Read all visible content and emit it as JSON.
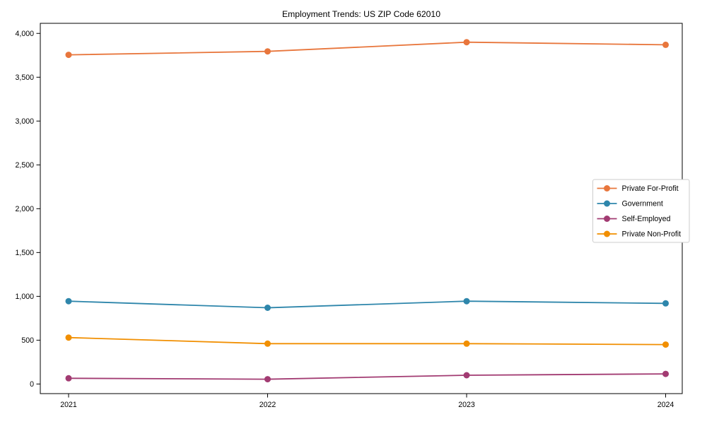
{
  "chart_data": {
    "type": "line",
    "title": "Employment Trends: US ZIP Code 62010",
    "categories": [
      "2021",
      "2022",
      "2023",
      "2024"
    ],
    "series": [
      {
        "name": "Private For-Profit",
        "color": "#E8763C",
        "values": [
          3755,
          3795,
          3900,
          3870
        ]
      },
      {
        "name": "Government",
        "color": "#2E86AB",
        "values": [
          945,
          870,
          945,
          920
        ]
      },
      {
        "name": "Self-Employed",
        "color": "#A23B72",
        "values": [
          65,
          55,
          100,
          115
        ]
      },
      {
        "name": "Private Non-Profit",
        "color": "#F18F01",
        "values": [
          530,
          460,
          460,
          450
        ]
      }
    ],
    "xlabel": "",
    "ylabel": "",
    "ylim": [
      0,
      4000
    ],
    "ytick_step": 500,
    "ytick_labels": [
      "0",
      "500",
      "1,000",
      "1,500",
      "2,000",
      "2,500",
      "3,000",
      "3,500",
      "4,000"
    ],
    "grid": false,
    "legend_position": "center-right",
    "axis_color": "#000000",
    "legend_border_color": "#cccccc",
    "background_color": "#ffffff"
  }
}
